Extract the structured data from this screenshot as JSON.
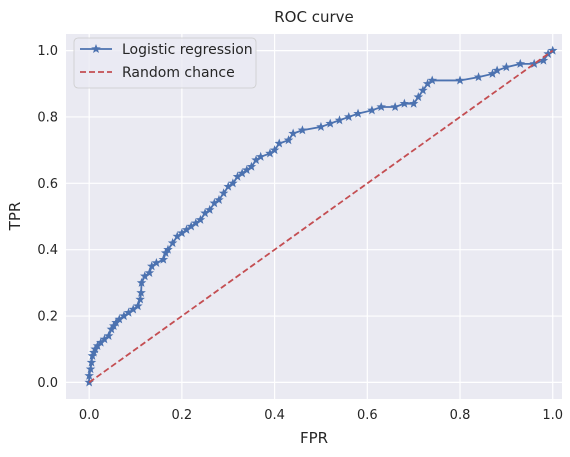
{
  "chart_data": {
    "type": "line",
    "title": "ROC curve",
    "xlabel": "FPR",
    "ylabel": "TPR",
    "xlim": [
      -0.05,
      1.02
    ],
    "ylim": [
      -0.05,
      1.05
    ],
    "xticks": [
      "0.0",
      "0.2",
      "0.4",
      "0.6",
      "0.8",
      "1.0"
    ],
    "yticks": [
      "0.0",
      "0.2",
      "0.4",
      "0.6",
      "0.8",
      "1.0"
    ],
    "grid": true,
    "legend_position": "top-left",
    "series": [
      {
        "name": "Logistic regression",
        "color": "#4c72b0",
        "line_style": "solid",
        "marker": "star",
        "points": [
          [
            0.0,
            0.0
          ],
          [
            0.0,
            0.02
          ],
          [
            0.003,
            0.04
          ],
          [
            0.005,
            0.06
          ],
          [
            0.007,
            0.08
          ],
          [
            0.01,
            0.09
          ],
          [
            0.013,
            0.1
          ],
          [
            0.018,
            0.11
          ],
          [
            0.025,
            0.12
          ],
          [
            0.033,
            0.13
          ],
          [
            0.042,
            0.14
          ],
          [
            0.048,
            0.16
          ],
          [
            0.053,
            0.17
          ],
          [
            0.058,
            0.18
          ],
          [
            0.065,
            0.19
          ],
          [
            0.075,
            0.2
          ],
          [
            0.085,
            0.21
          ],
          [
            0.095,
            0.22
          ],
          [
            0.105,
            0.23
          ],
          [
            0.11,
            0.25
          ],
          [
            0.112,
            0.27
          ],
          [
            0.113,
            0.3
          ],
          [
            0.12,
            0.32
          ],
          [
            0.13,
            0.33
          ],
          [
            0.135,
            0.35
          ],
          [
            0.145,
            0.36
          ],
          [
            0.16,
            0.37
          ],
          [
            0.165,
            0.39
          ],
          [
            0.17,
            0.4
          ],
          [
            0.18,
            0.42
          ],
          [
            0.19,
            0.44
          ],
          [
            0.2,
            0.45
          ],
          [
            0.21,
            0.46
          ],
          [
            0.22,
            0.47
          ],
          [
            0.23,
            0.48
          ],
          [
            0.24,
            0.49
          ],
          [
            0.25,
            0.51
          ],
          [
            0.26,
            0.52
          ],
          [
            0.27,
            0.54
          ],
          [
            0.28,
            0.55
          ],
          [
            0.29,
            0.57
          ],
          [
            0.3,
            0.59
          ],
          [
            0.31,
            0.6
          ],
          [
            0.32,
            0.62
          ],
          [
            0.33,
            0.63
          ],
          [
            0.34,
            0.64
          ],
          [
            0.35,
            0.65
          ],
          [
            0.36,
            0.67
          ],
          [
            0.37,
            0.68
          ],
          [
            0.39,
            0.69
          ],
          [
            0.4,
            0.7
          ],
          [
            0.41,
            0.72
          ],
          [
            0.43,
            0.73
          ],
          [
            0.44,
            0.75
          ],
          [
            0.46,
            0.76
          ],
          [
            0.5,
            0.77
          ],
          [
            0.52,
            0.78
          ],
          [
            0.54,
            0.79
          ],
          [
            0.56,
            0.8
          ],
          [
            0.58,
            0.81
          ],
          [
            0.61,
            0.82
          ],
          [
            0.63,
            0.83
          ],
          [
            0.66,
            0.83
          ],
          [
            0.68,
            0.84
          ],
          [
            0.7,
            0.84
          ],
          [
            0.71,
            0.86
          ],
          [
            0.72,
            0.88
          ],
          [
            0.73,
            0.9
          ],
          [
            0.74,
            0.91
          ],
          [
            0.8,
            0.91
          ],
          [
            0.84,
            0.92
          ],
          [
            0.87,
            0.93
          ],
          [
            0.88,
            0.94
          ],
          [
            0.9,
            0.95
          ],
          [
            0.93,
            0.96
          ],
          [
            0.96,
            0.96
          ],
          [
            0.98,
            0.97
          ],
          [
            0.99,
            0.99
          ],
          [
            1.0,
            1.0
          ]
        ]
      },
      {
        "name": "Random chance",
        "color": "#c44e52",
        "line_style": "dashed",
        "marker": "none",
        "points": [
          [
            0.0,
            0.0
          ],
          [
            1.0,
            1.0
          ]
        ]
      }
    ]
  }
}
